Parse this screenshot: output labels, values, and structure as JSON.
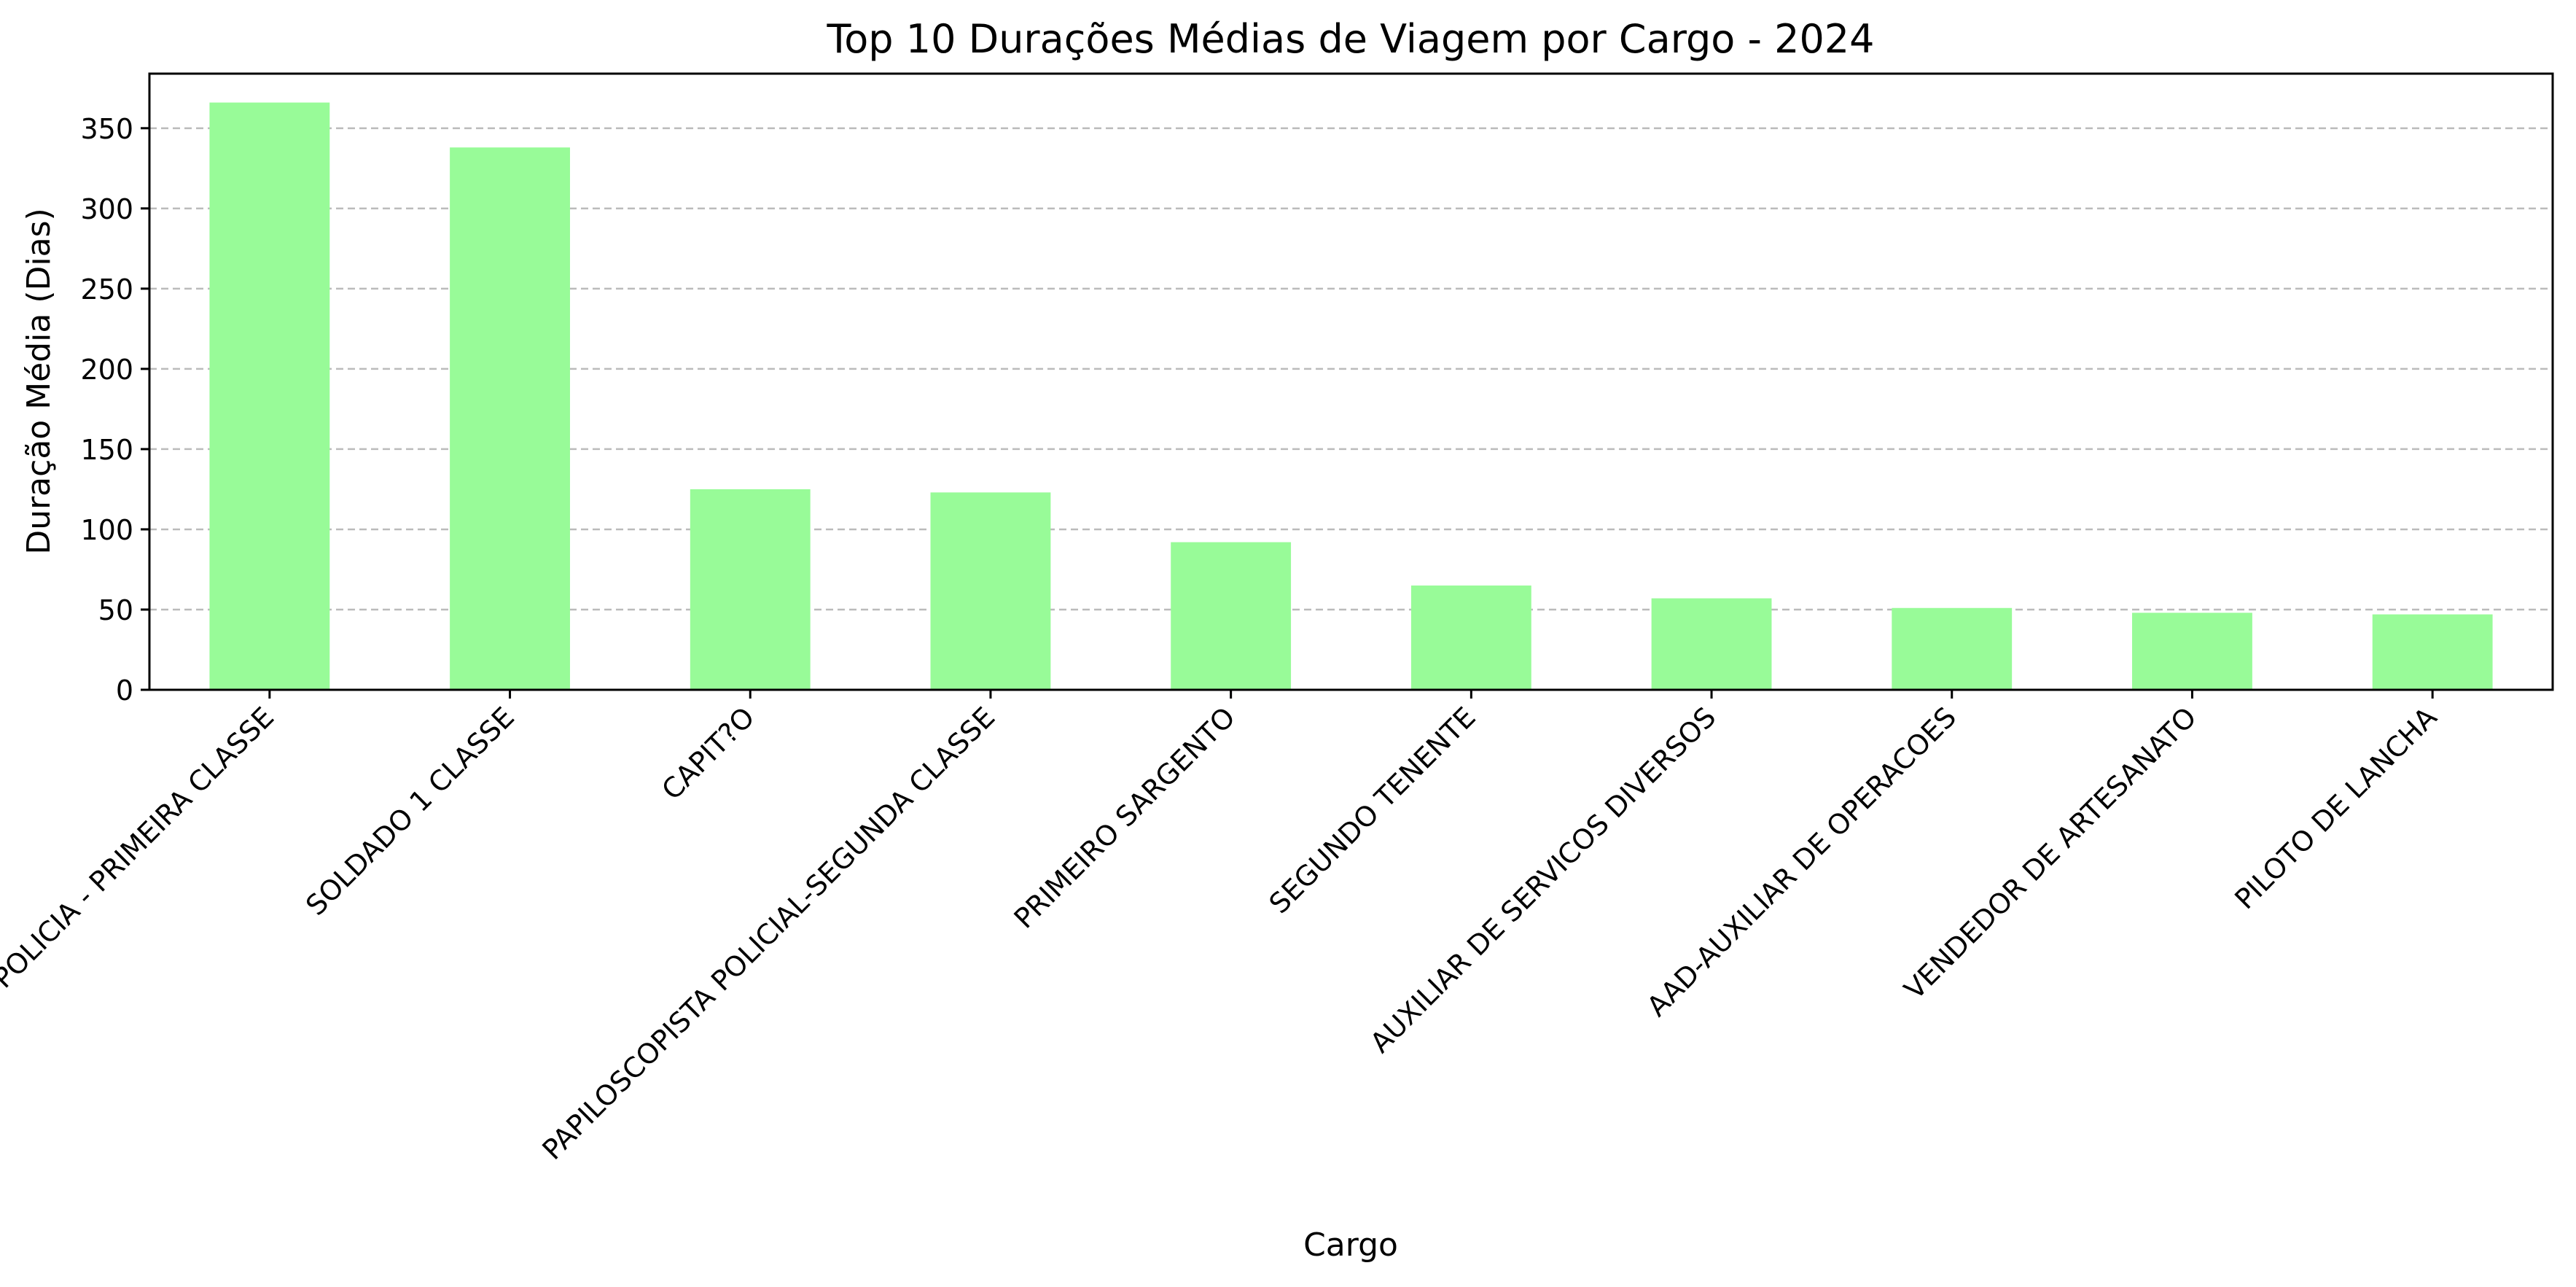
{
  "chart_data": {
    "type": "bar",
    "title": "Top 10 Durações Médias de Viagem por Cargo - 2024",
    "xlabel": "Cargo",
    "ylabel": "Duração Média (Dias)",
    "categories": [
      "DELEGADO DE POLICIA - PRIMEIRA CLASSE",
      "SOLDADO 1 CLASSE",
      "CAPIT?O",
      "PAPILOSCOPISTA POLICIAL-SEGUNDA CLASSE",
      "PRIMEIRO SARGENTO",
      "SEGUNDO TENENTE",
      "AUXILIAR DE SERVICOS DIVERSOS",
      "AAD-AUXILIAR DE OPERACOES",
      "VENDEDOR DE ARTESANATO",
      "PILOTO DE LANCHA"
    ],
    "values": [
      366,
      338,
      125,
      123,
      92,
      65,
      57,
      51,
      48,
      47
    ],
    "ylim": [
      0,
      384
    ],
    "yticks": [
      0,
      50,
      100,
      150,
      200,
      250,
      300,
      350
    ],
    "grid": "y-dashed",
    "bar_color": "#98fb98",
    "grid_color": "#bbbbbb"
  }
}
